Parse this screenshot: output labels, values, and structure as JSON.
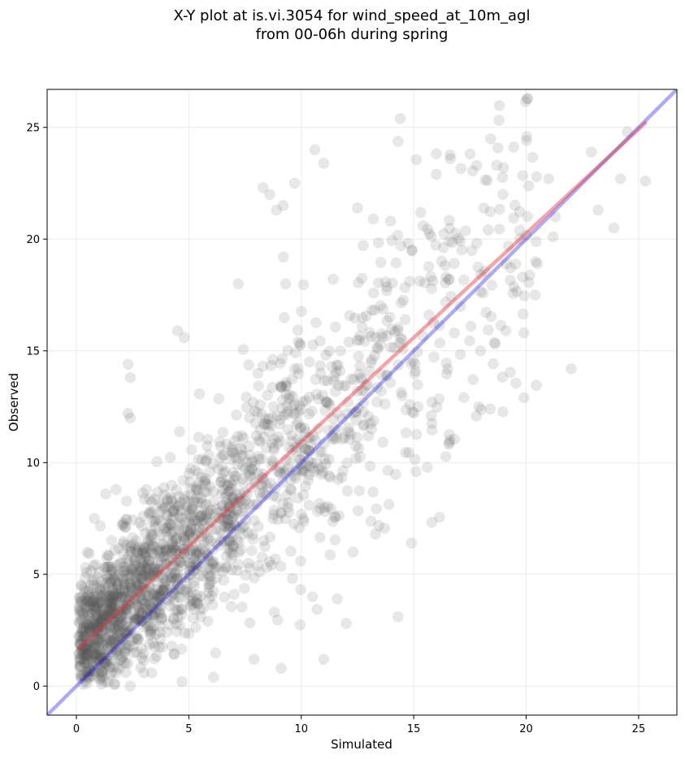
{
  "chart_data": {
    "type": "scatter",
    "title_lines": [
      "X-Y plot at is.vi.3054 for wind_speed_at_10m_agl",
      "from 00-06h during spring"
    ],
    "xlabel": "Simulated",
    "ylabel": "Observed",
    "xlim": [
      -1.3,
      26.7
    ],
    "ylim": [
      -1.3,
      26.7
    ],
    "x_ticks": [
      0,
      5,
      10,
      15,
      20,
      25
    ],
    "y_ticks": [
      0,
      5,
      10,
      15,
      20,
      25
    ],
    "grid": true,
    "point_color": "#555555",
    "one_to_one_line": {
      "x": [
        -1.3,
        26.7
      ],
      "y": [
        -1.3,
        26.7
      ],
      "color": "#0000ee"
    },
    "fit_line": {
      "x": [
        0.1,
        25.3
      ],
      "y": [
        1.7,
        25.2
      ],
      "color": "#e8323c"
    },
    "outlier_points": [
      {
        "x": 14.4,
        "y": 25.4
      },
      {
        "x": 10.6,
        "y": 24.0
      },
      {
        "x": 11.0,
        "y": 23.4
      },
      {
        "x": 8.3,
        "y": 22.3
      },
      {
        "x": 8.6,
        "y": 22.0
      },
      {
        "x": 9.7,
        "y": 22.5
      },
      {
        "x": 9.2,
        "y": 21.5
      },
      {
        "x": 8.9,
        "y": 21.3
      },
      {
        "x": 22.9,
        "y": 23.9
      },
      {
        "x": 24.5,
        "y": 24.8
      },
      {
        "x": 25.3,
        "y": 22.6
      },
      {
        "x": 24.2,
        "y": 22.7
      },
      {
        "x": 23.2,
        "y": 21.3
      },
      {
        "x": 23.9,
        "y": 20.5
      },
      {
        "x": 22.0,
        "y": 14.2
      },
      {
        "x": 19.9,
        "y": 12.9
      },
      {
        "x": 14.3,
        "y": 3.1
      },
      {
        "x": 14.9,
        "y": 6.4
      },
      {
        "x": 10.5,
        "y": 4.0
      },
      {
        "x": 11.6,
        "y": 3.9
      },
      {
        "x": 12.0,
        "y": 2.8
      },
      {
        "x": 11.0,
        "y": 1.2
      },
      {
        "x": 9.1,
        "y": 0.8
      },
      {
        "x": 2.3,
        "y": 14.4
      },
      {
        "x": 2.4,
        "y": 13.8
      },
      {
        "x": 2.3,
        "y": 12.2
      },
      {
        "x": 2.4,
        "y": 12.0
      },
      {
        "x": 4.5,
        "y": 15.9
      },
      {
        "x": 4.8,
        "y": 15.6
      },
      {
        "x": 9.2,
        "y": 19.2
      },
      {
        "x": 9.3,
        "y": 18.0
      },
      {
        "x": 7.2,
        "y": 18.0
      },
      {
        "x": 20.5,
        "y": 18.9
      },
      {
        "x": 21.2,
        "y": 20.1
      },
      {
        "x": 21.3,
        "y": 21.0
      },
      {
        "x": 21.0,
        "y": 22.7
      },
      {
        "x": 16.0,
        "y": 22.9
      },
      {
        "x": 17.8,
        "y": 23.3
      },
      {
        "x": 19.0,
        "y": 23.2
      },
      {
        "x": 12.5,
        "y": 21.4
      },
      {
        "x": 13.2,
        "y": 20.9
      },
      {
        "x": 0.2,
        "y": 3.8
      },
      {
        "x": 0.4,
        "y": 5.3
      },
      {
        "x": 0.8,
        "y": 7.5
      },
      {
        "x": 1.3,
        "y": 8.6
      },
      {
        "x": 0.2,
        "y": 1.2
      },
      {
        "x": 0.5,
        "y": 0.5
      },
      {
        "x": 1.7,
        "y": 0.1
      },
      {
        "x": 2.4,
        "y": 0.0
      },
      {
        "x": 3.0,
        "y": 0.6
      },
      {
        "x": 4.7,
        "y": 0.2
      },
      {
        "x": 6.1,
        "y": 0.4
      },
      {
        "x": 7.9,
        "y": 1.2
      },
      {
        "x": 18.4,
        "y": 12.4
      },
      {
        "x": 17.9,
        "y": 12.5
      },
      {
        "x": 16.6,
        "y": 11.0
      },
      {
        "x": 15.6,
        "y": 9.8
      },
      {
        "x": 15.1,
        "y": 9.6
      },
      {
        "x": 12.3,
        "y": 6.0
      },
      {
        "x": 13.3,
        "y": 6.8
      },
      {
        "x": 19.1,
        "y": 15.9
      },
      {
        "x": 19.9,
        "y": 15.8
      },
      {
        "x": 20.4,
        "y": 17.5
      }
    ],
    "generated_points": {
      "count": 1950,
      "seed": 3054,
      "x_range": [
        0.1,
        20.5
      ],
      "fit_slope": 0.935,
      "fit_intercept": 1.6,
      "density_decay": 0.17
    }
  }
}
